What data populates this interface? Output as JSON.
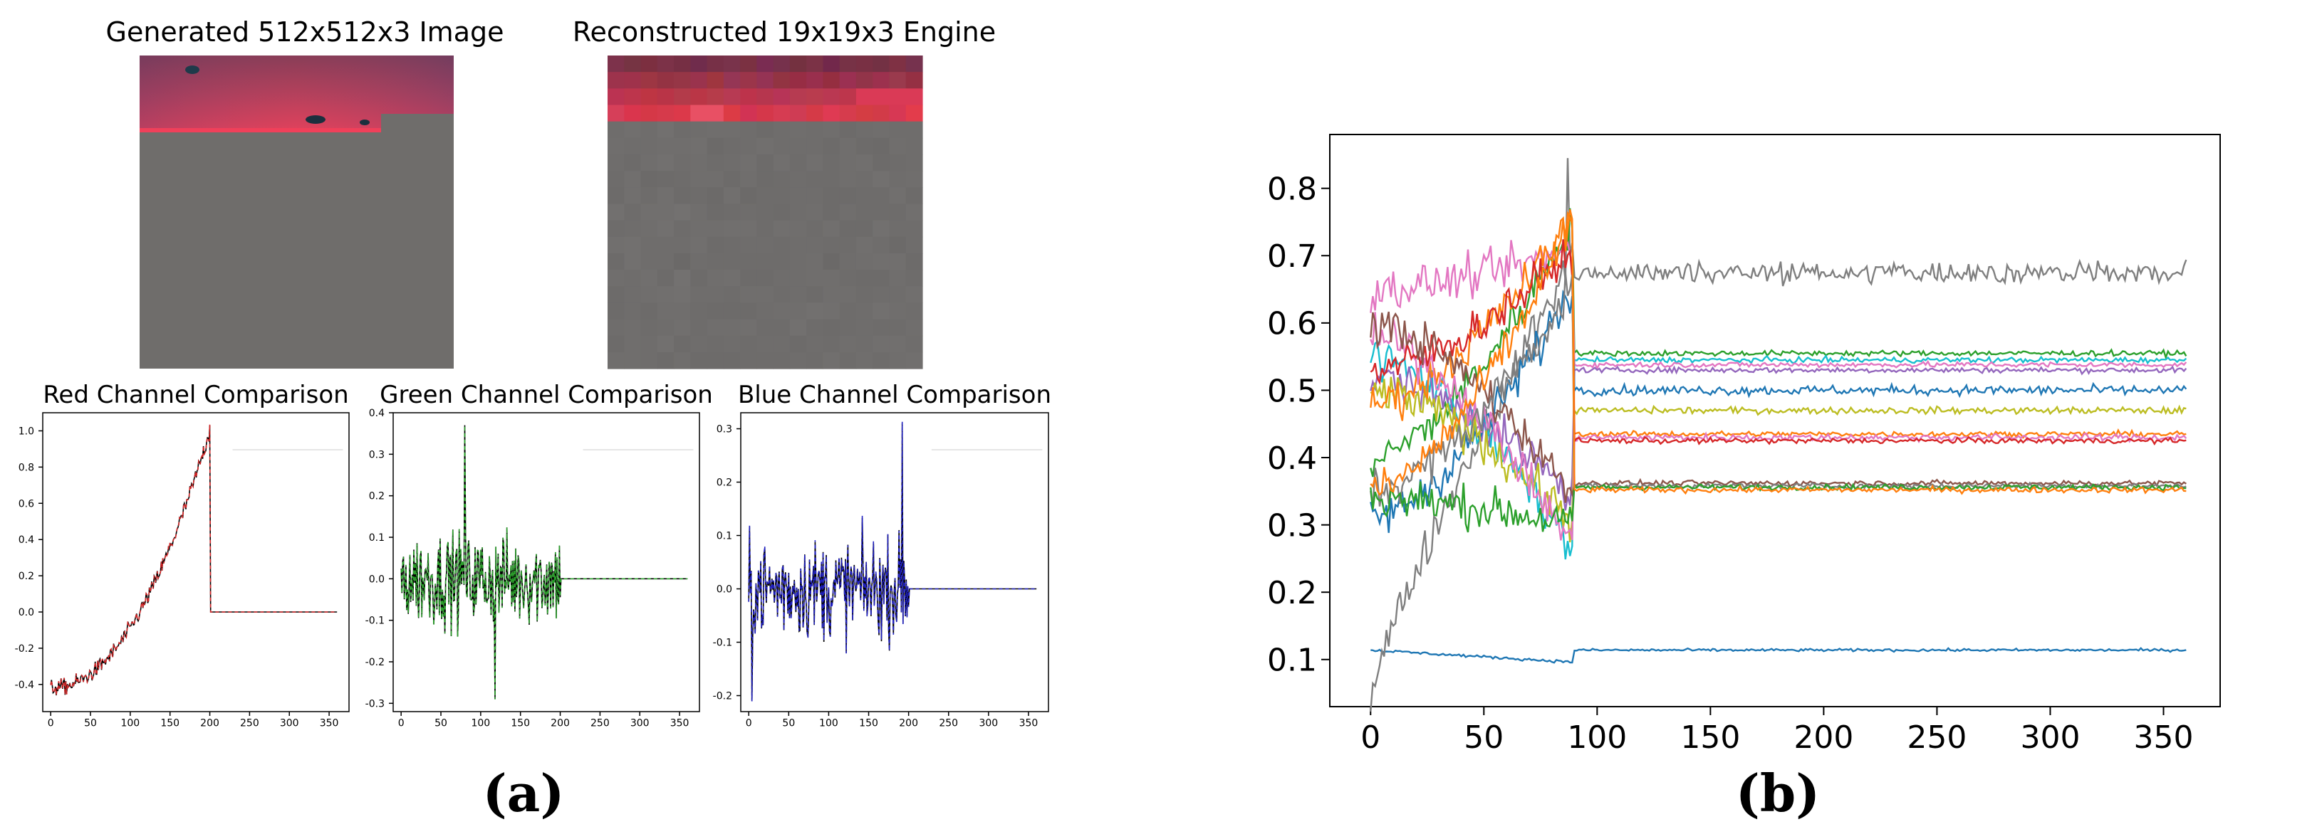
{
  "panel_labels": {
    "a": "(a)",
    "b": "(b)"
  },
  "images": {
    "generated_title": "Generated 512x512x3 Image",
    "reconstructed_title": "Reconstructed 19x19x3 Engine",
    "colors": {
      "red_band": "#e23a55",
      "purple_band": "#8a3a52",
      "gray": "#6f6d6b"
    }
  },
  "chart_data": [
    {
      "type": "line",
      "title": "Red Channel Comparison",
      "xlim": [
        -10,
        375
      ],
      "ylim": [
        -0.55,
        1.1
      ],
      "xticks": [
        0,
        50,
        100,
        150,
        200,
        250,
        300,
        350
      ],
      "yticks": [
        -0.4,
        -0.2,
        0.0,
        0.2,
        0.4,
        0.6,
        0.8,
        1.0
      ],
      "ytick_labels": [
        "-0.4",
        "-0.2",
        "0.0",
        "0.2",
        "0.4",
        "0.6",
        "0.8",
        "1.0"
      ],
      "series": [
        {
          "color": "#000000",
          "style": "solid"
        },
        {
          "color": "#d62728",
          "style": "dashed"
        }
      ],
      "shape": "rising noisy curve from about -0.4 at x=0 to about 1.0 at x=200, then constant 0.0 until x=360"
    },
    {
      "type": "line",
      "title": "Green Channel Comparison",
      "xlim": [
        -10,
        375
      ],
      "ylim": [
        -0.32,
        0.4
      ],
      "xticks": [
        0,
        50,
        100,
        150,
        200,
        250,
        300,
        350
      ],
      "yticks": [
        -0.3,
        -0.2,
        -0.1,
        0.0,
        0.1,
        0.2,
        0.3,
        0.4
      ],
      "ytick_labels": [
        "-0.3",
        "-0.2",
        "-0.1",
        "0.0",
        "0.1",
        "0.2",
        "0.3",
        "0.4"
      ],
      "series": [
        {
          "color": "#000000",
          "style": "solid"
        },
        {
          "color": "#2ca02c",
          "style": "dashed"
        }
      ],
      "shape": "noise between about -0.3 and 0.37 for x=0..200, then constant 0.0 until x=360"
    },
    {
      "type": "line",
      "title": "Blue Channel Comparison",
      "xlim": [
        -10,
        375
      ],
      "ylim": [
        -0.23,
        0.33
      ],
      "xticks": [
        0,
        50,
        100,
        150,
        200,
        250,
        300,
        350
      ],
      "yticks": [
        -0.2,
        -0.1,
        0.0,
        0.1,
        0.2,
        0.3
      ],
      "ytick_labels": [
        "-0.2",
        "-0.1",
        "0.0",
        "0.1",
        "0.2",
        "0.3"
      ],
      "series": [
        {
          "color": "#000000",
          "style": "solid"
        },
        {
          "color": "#1f1fbf",
          "style": "dashed"
        }
      ],
      "shape": "noise between about -0.22 and 0.31 for x=0..200, then constant 0.0 until x=360"
    },
    {
      "type": "line",
      "title": "",
      "xlim": [
        -18,
        375
      ],
      "ylim": [
        0.03,
        0.88
      ],
      "xticks": [
        0,
        50,
        100,
        150,
        200,
        250,
        300,
        350
      ],
      "yticks": [
        0.1,
        0.2,
        0.3,
        0.4,
        0.5,
        0.6,
        0.7,
        0.8
      ],
      "ytick_labels": [
        "0.1",
        "0.2",
        "0.3",
        "0.4",
        "0.5",
        "0.6",
        "0.7",
        "0.8"
      ],
      "transition_x": 90,
      "series": [
        {
          "color": "#1f77b4",
          "start": 0.114,
          "plateau": 0.114,
          "noise": 0.002
        },
        {
          "color": "#7f7f7f",
          "start": 0.05,
          "plateau": 0.675,
          "noise": 0.018
        },
        {
          "color": "#2ca02c",
          "start": 0.4,
          "plateau": 0.555,
          "noise": 0.004
        },
        {
          "color": "#17becf",
          "start": 0.55,
          "plateau": 0.545,
          "noise": 0.004
        },
        {
          "color": "#e377c2",
          "start": 0.65,
          "plateau": 0.538,
          "noise": 0.004
        },
        {
          "color": "#9467bd",
          "start": 0.52,
          "plateau": 0.53,
          "noise": 0.004
        },
        {
          "color": "#1f77b4",
          "start": 0.31,
          "plateau": 0.5,
          "noise": 0.007
        },
        {
          "color": "#bcbd22",
          "start": 0.5,
          "plateau": 0.47,
          "noise": 0.005
        },
        {
          "color": "#ff7f0e",
          "start": 0.48,
          "plateau": 0.435,
          "noise": 0.004
        },
        {
          "color": "#e377c2",
          "start": 0.58,
          "plateau": 0.43,
          "noise": 0.005
        },
        {
          "color": "#d62728",
          "start": 0.53,
          "plateau": 0.425,
          "noise": 0.004
        },
        {
          "color": "#8c564b",
          "start": 0.6,
          "plateau": 0.362,
          "noise": 0.004
        },
        {
          "color": "#7f7f7f",
          "start": 0.35,
          "plateau": 0.358,
          "noise": 0.004
        },
        {
          "color": "#2ca02c",
          "start": 0.34,
          "plateau": 0.356,
          "noise": 0.004
        },
        {
          "color": "#ff7f0e",
          "start": 0.35,
          "plateau": 0.352,
          "noise": 0.004
        }
      ]
    }
  ]
}
